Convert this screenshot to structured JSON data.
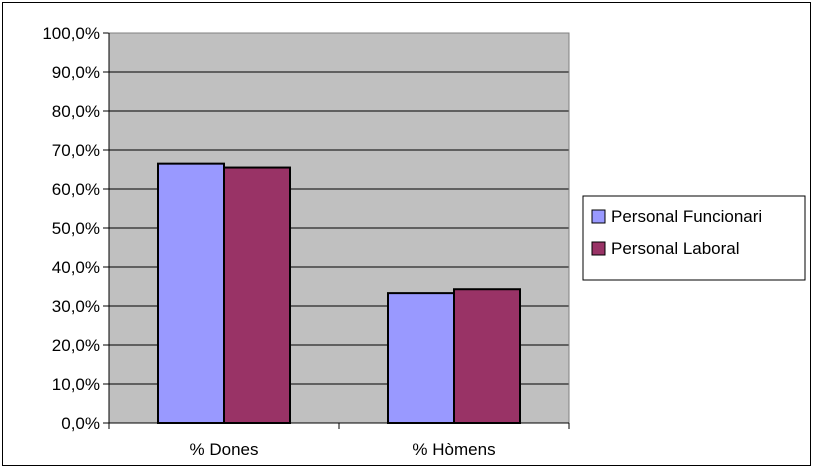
{
  "chart_data": {
    "type": "bar",
    "categories": [
      "% Dones",
      "% Hòmens"
    ],
    "series": [
      {
        "name": "Personal Funcionari",
        "values": [
          66.5,
          33.3
        ],
        "color": "#9999ff"
      },
      {
        "name": "Personal Laboral",
        "values": [
          65.5,
          34.3
        ],
        "color": "#993366"
      }
    ],
    "ylim": [
      0,
      100
    ],
    "yticks": [
      "0,0%",
      "10,0%",
      "20,0%",
      "30,0%",
      "40,0%",
      "50,0%",
      "60,0%",
      "70,0%",
      "80,0%",
      "90,0%",
      "100,0%"
    ],
    "grid": true,
    "plot_background": "#c0c0c0",
    "legend_position": "right",
    "title": "",
    "xlabel": "",
    "ylabel": ""
  }
}
